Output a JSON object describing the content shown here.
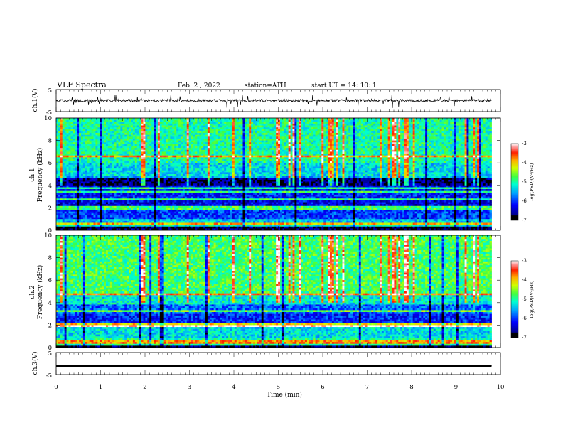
{
  "header": {
    "title": "VLF  Spectra",
    "date": "Feb. 2  , 2022",
    "station": "station=ATH",
    "start": "start  UT  =   14: 10: 1"
  },
  "chart_data": [
    {
      "type": "line",
      "id": "ch1-waveform",
      "ylabel": "ch.1(V)",
      "ylim": [
        -5,
        5
      ],
      "yticks": [
        "5",
        "-5"
      ],
      "xlim": [
        0,
        10
      ],
      "data_end_min": 9.8,
      "baseline": 0,
      "description_values": {
        "typical_range": [
          -1.5,
          1.5
        ]
      }
    },
    {
      "type": "heatmap",
      "id": "ch1-spectrogram",
      "ylabel": "ch.1",
      "ylabel2": "Frequency (kHz)",
      "ylim": [
        0,
        10
      ],
      "yticks": [
        "0",
        "2",
        "4",
        "6",
        "8",
        "10"
      ],
      "xlim": [
        0,
        10
      ],
      "data_end_min": 9.8,
      "colorbar": {
        "label": "log(PSD)(V²/Hz)",
        "range": [
          -7,
          -3
        ],
        "ticks": [
          "-3",
          "-4",
          "-5",
          "-6",
          "-7"
        ]
      },
      "bands": [
        {
          "from": 0,
          "to": 0.3,
          "value": -6.8
        },
        {
          "from": 0.3,
          "to": 0.7,
          "value": -5.2
        },
        {
          "from": 0.7,
          "to": 1.0,
          "value": -5.4
        },
        {
          "from": 1.0,
          "to": 2.2,
          "value": -6.0
        },
        {
          "from": 2.2,
          "to": 2.6,
          "value": -6.3
        },
        {
          "from": 2.6,
          "to": 3.5,
          "value": -6.1
        },
        {
          "from": 3.5,
          "to": 4.0,
          "value": -6.2
        },
        {
          "from": 4.0,
          "to": 4.8,
          "value": -6.7
        },
        {
          "from": 4.8,
          "to": 6.0,
          "value": -5.3
        },
        {
          "from": 6.0,
          "to": 10.0,
          "value": -5.0
        }
      ],
      "tones_khz": [
        0.6,
        2.0,
        2.8,
        3.4,
        3.8,
        4.8,
        6.6
      ]
    },
    {
      "type": "heatmap",
      "id": "ch2-spectrogram",
      "ylabel": "ch.2",
      "ylabel2": "Frequency (kHz)",
      "ylim": [
        0,
        10
      ],
      "yticks": [
        "0",
        "2",
        "4",
        "6",
        "8",
        "10"
      ],
      "xlim": [
        0,
        10
      ],
      "data_end_min": 9.8,
      "colorbar": {
        "label": "log(PSD)(V²/Hz)",
        "range": [
          -7,
          -3
        ],
        "ticks": [
          "-3",
          "-4",
          "-5",
          "-6",
          "-7"
        ]
      },
      "bands": [
        {
          "from": 0,
          "to": 0.2,
          "value": -6.8
        },
        {
          "from": 0.2,
          "to": 0.8,
          "value": -5.0
        },
        {
          "from": 0.8,
          "to": 2.2,
          "value": -5.3
        },
        {
          "from": 2.2,
          "to": 3.0,
          "value": -6.1
        },
        {
          "from": 3.0,
          "to": 3.8,
          "value": -5.8
        },
        {
          "from": 3.8,
          "to": 4.6,
          "value": -5.2
        },
        {
          "from": 4.6,
          "to": 10.0,
          "value": -4.8
        }
      ],
      "tones_khz": [
        0.5,
        1.9,
        2.0,
        3.3,
        4.7
      ]
    },
    {
      "type": "line",
      "id": "ch3-waveform",
      "ylabel": "ch.3(V)",
      "ylim": [
        -5,
        5
      ],
      "yticks": [
        "5",
        "-5"
      ],
      "xlim": [
        0,
        10
      ],
      "data_end_min": 9.8,
      "baseline": -1.2
    }
  ],
  "x_axis": {
    "label": "Time  (min)",
    "ticks": [
      "0",
      "1",
      "2",
      "3",
      "4",
      "5",
      "6",
      "7",
      "8",
      "9",
      "10"
    ]
  }
}
